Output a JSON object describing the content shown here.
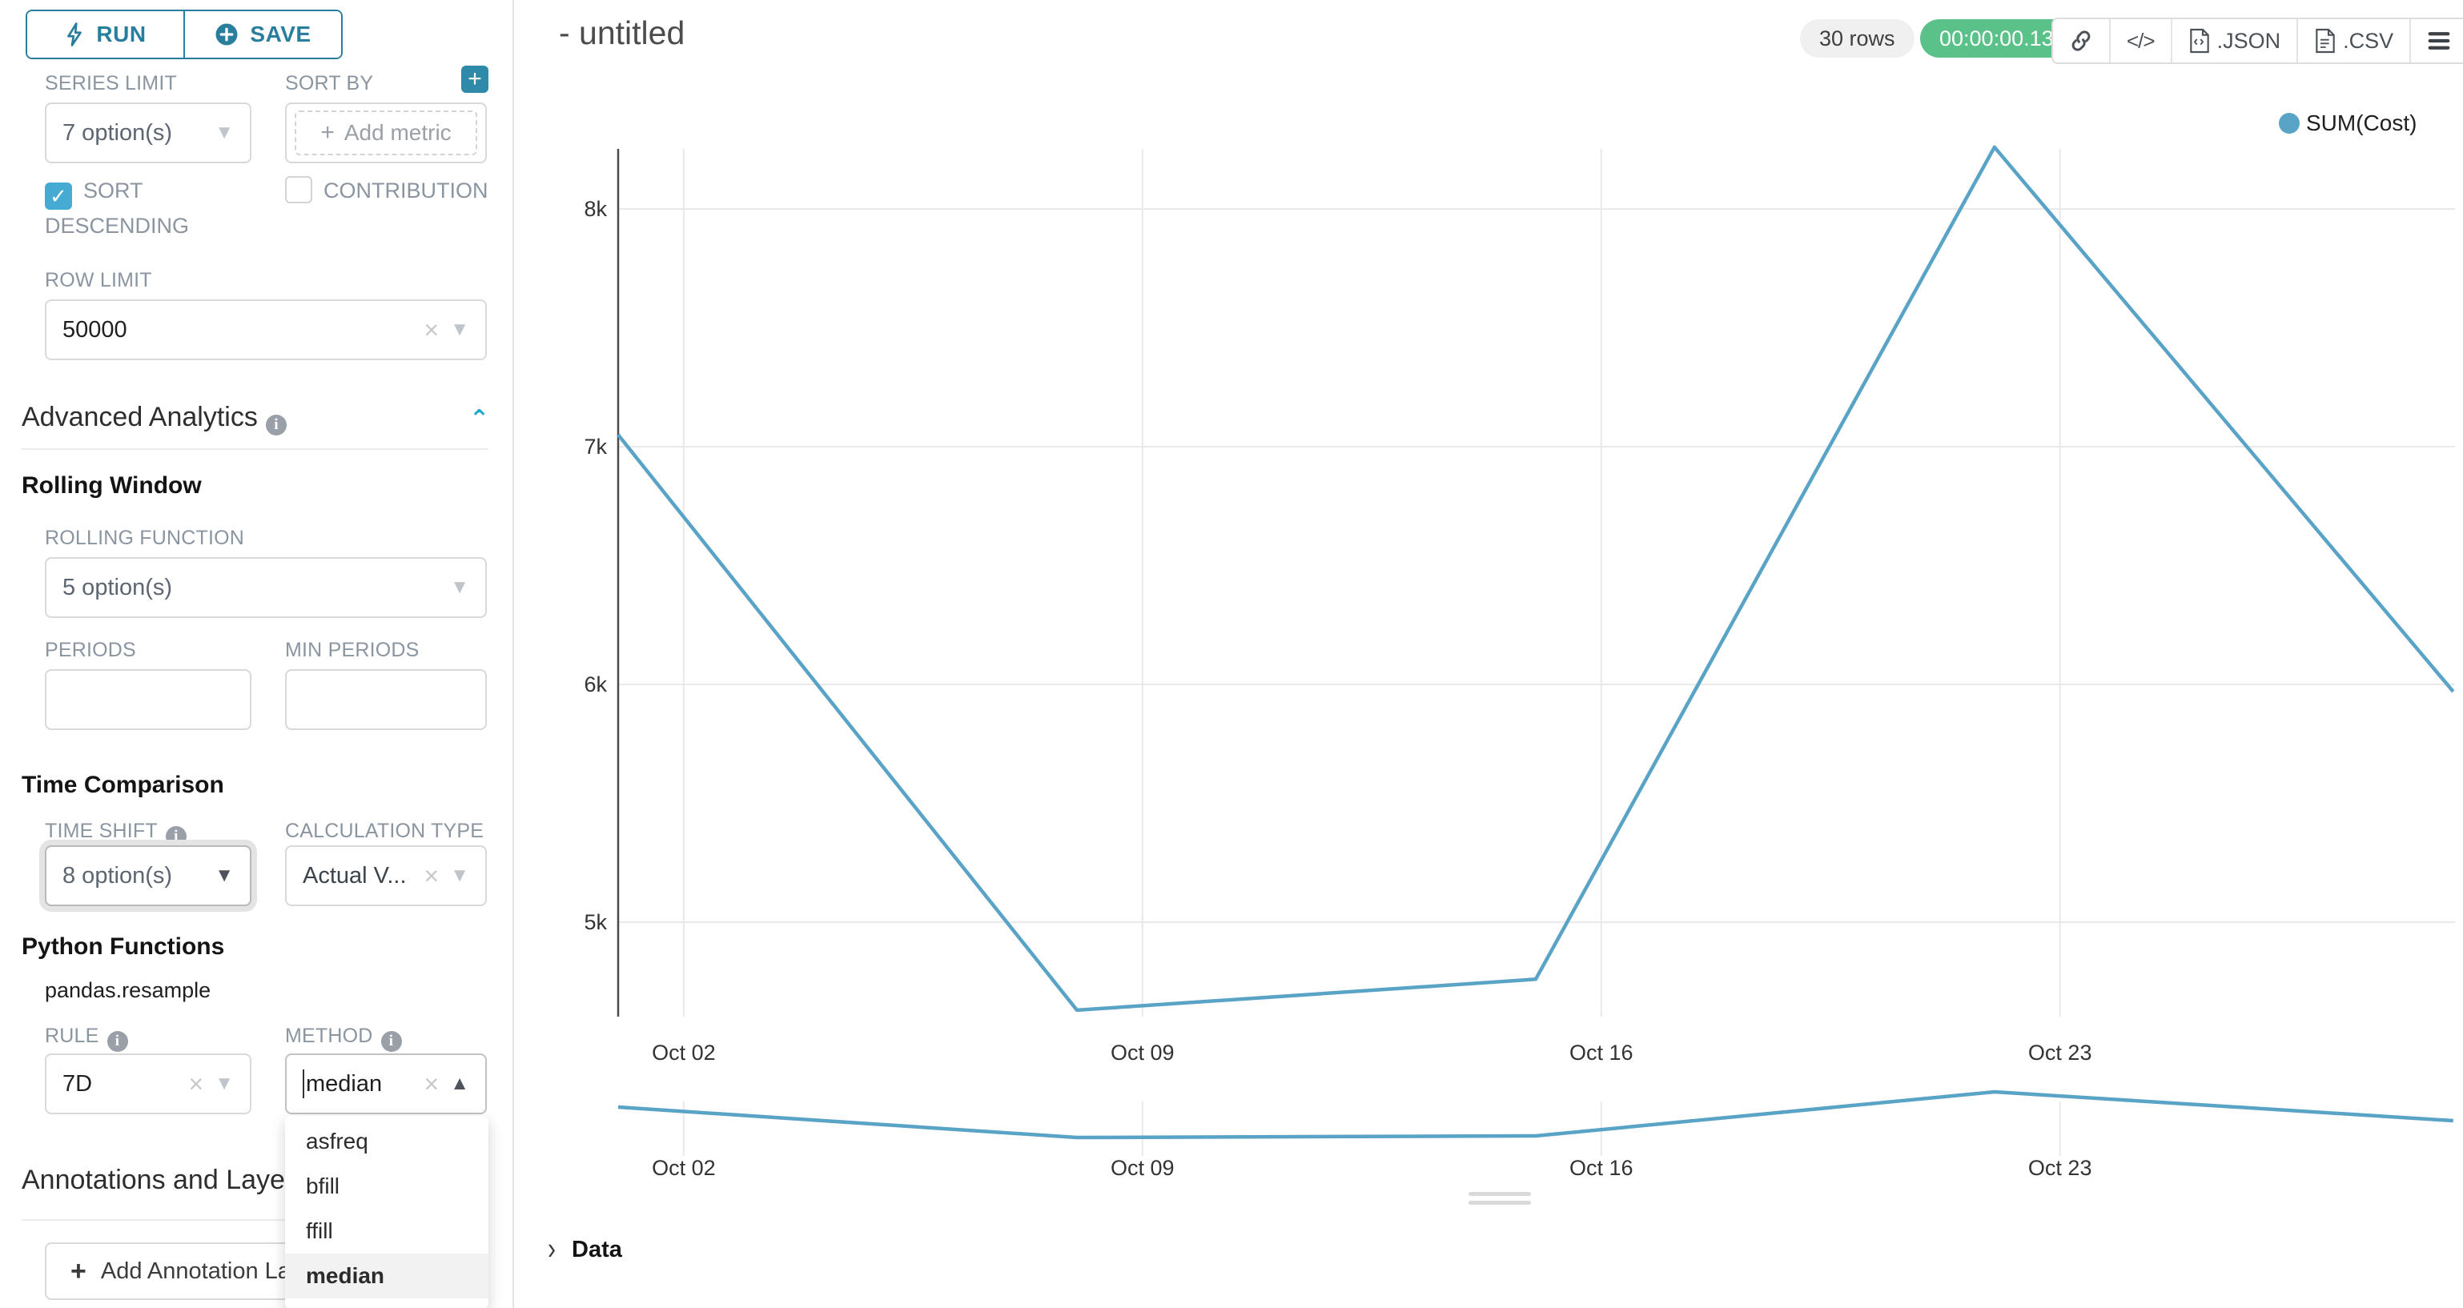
{
  "toolbar": {
    "run_label": "RUN",
    "save_label": "SAVE"
  },
  "panel": {
    "series_limit_label": "SERIES LIMIT",
    "series_limit_value": "7 option(s)",
    "sort_by_label": "SORT BY",
    "sort_by_placeholder": "Add metric",
    "sort_descending_label": "SORT DESCENDING",
    "contribution_label": "CONTRIBUTION",
    "row_limit_label": "ROW LIMIT",
    "row_limit_value": "50000",
    "advanced_analytics_label": "Advanced Analytics",
    "rolling_window_label": "Rolling Window",
    "rolling_function_label": "ROLLING FUNCTION",
    "rolling_function_value": "5 option(s)",
    "periods_label": "PERIODS",
    "min_periods_label": "MIN PERIODS",
    "time_comparison_label": "Time Comparison",
    "time_shift_label": "TIME SHIFT",
    "time_shift_value": "8 option(s)",
    "calculation_type_label": "CALCULATION TYPE",
    "calculation_type_value": "Actual V...",
    "python_functions_label": "Python Functions",
    "pandas_resample_label": "pandas.resample",
    "rule_label": "RULE",
    "rule_value": "7D",
    "method_label": "METHOD",
    "annotations_label": "Annotations and Layers",
    "add_annotation_label": "Add Annotation Layer"
  },
  "method_dropdown": {
    "selected": "median",
    "options": [
      "asfreq",
      "bfill",
      "ffill",
      "median"
    ]
  },
  "header": {
    "title": "- untitled",
    "rows_badge": "30 rows",
    "timer": "00:00:00.13",
    "export_json_label": ".JSON",
    "export_csv_label": ".CSV"
  },
  "data_panel": {
    "label": "Data"
  },
  "colors": {
    "primary": "#2a7e9d",
    "checkbox_checked": "#45abd3",
    "series_line": "#58a3c6",
    "timer_success": "#5ac189",
    "gridline": "#e9e9e9",
    "axis_line": "#4a4a4a"
  },
  "chart_data": {
    "type": "line",
    "title": "- untitled",
    "legend": [
      "SUM(Cost)"
    ],
    "legend_position": "top-right",
    "x": [
      "Oct 01",
      "Oct 08",
      "Oct 15",
      "Oct 22",
      "Oct 29"
    ],
    "series": [
      {
        "name": "SUM(Cost)",
        "values": [
          7050,
          4630,
          4760,
          8260,
          5970
        ]
      }
    ],
    "x_tick_labels": [
      "Oct 02",
      "Oct 09",
      "Oct 16",
      "Oct 23"
    ],
    "y_tick_labels": [
      "5k",
      "6k",
      "7k",
      "8k"
    ],
    "y_ticks": [
      5000,
      6000,
      7000,
      8000
    ],
    "ylim": [
      4600,
      8400
    ],
    "grid": true,
    "has_mini_range_chart": true
  }
}
